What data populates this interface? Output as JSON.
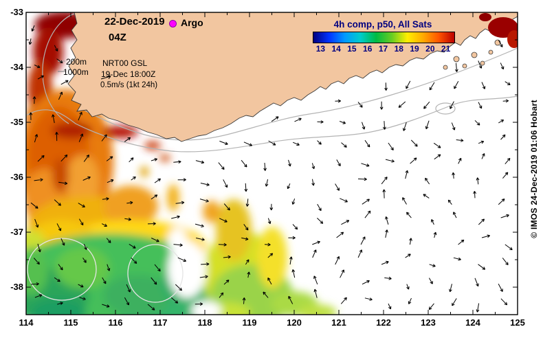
{
  "header": {
    "date": "22-Dec-2019",
    "time": "04Z",
    "argo_label": "Argo"
  },
  "colorbar": {
    "title": "4h comp, p50, All Sats",
    "tick_labels": [
      "13",
      "14",
      "15",
      "16",
      "17",
      "18",
      "19",
      "20",
      "21"
    ],
    "gradient": [
      "#00007f",
      "#0033ff",
      "#0099ff",
      "#00cccc",
      "#00bb44",
      "#66cc22",
      "#ffee00",
      "#ffaa00",
      "#ff5500",
      "#bb0000"
    ],
    "text_color": "#000080"
  },
  "legend": {
    "contour_200m": "200m",
    "contour_1000m": "1000m",
    "product": "NRT00 GSL",
    "valid_time": "19-Dec 18:00Z",
    "vector_scale": "0.5m/s (1kt 24h)"
  },
  "axes": {
    "x_tick_labels": [
      "114",
      "115",
      "116",
      "117",
      "118",
      "119",
      "120",
      "121",
      "122",
      "123",
      "124",
      "125"
    ],
    "y_tick_labels": [
      "-33",
      "-34",
      "-35",
      "-36",
      "-37",
      "-38"
    ]
  },
  "credit": "© IMOS 24-Dec-2019 01:06 Hobart",
  "map_info": {
    "lon_range": [
      114,
      125
    ],
    "lat_range": [
      -38.5,
      -33
    ]
  },
  "colors": {
    "land": "#f2c6a0",
    "sea_no_data": "#ffffff",
    "vector": "#000000",
    "argo_marker": "#ff00ff",
    "contour_gray": "#b3b3b3"
  }
}
